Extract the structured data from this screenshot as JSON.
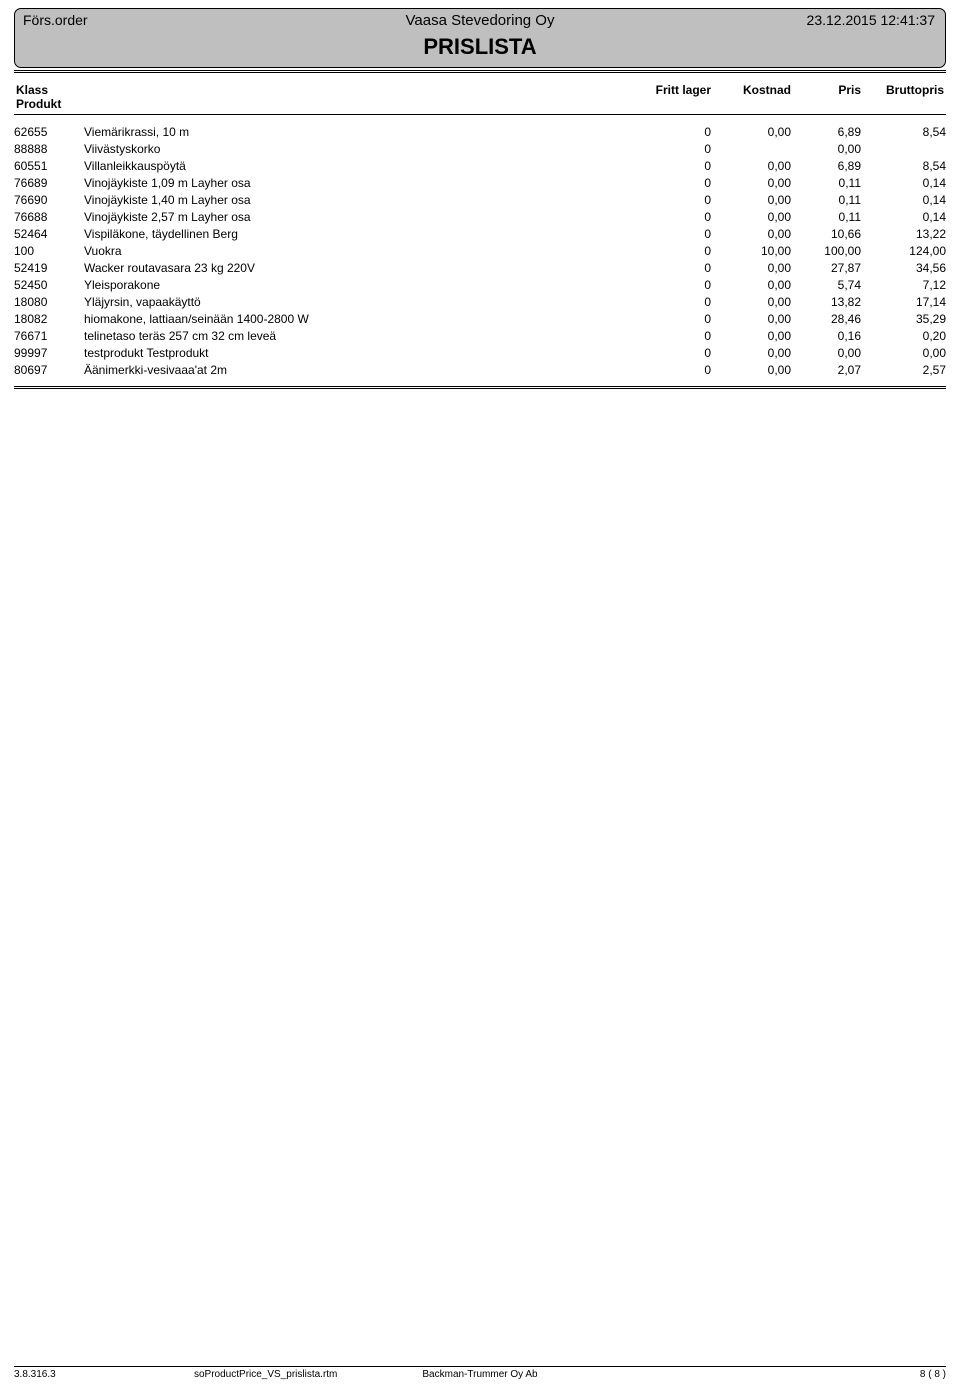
{
  "header": {
    "left": "Förs.order",
    "center": "Vaasa Stevedoring Oy",
    "right": "23.12.2015 12:41:37",
    "title": "PRISLISTA"
  },
  "columns": {
    "klass": "Klass",
    "produkt": "Produkt",
    "fritt": "Fritt lager",
    "kostnad": "Kostnad",
    "pris": "Pris",
    "bruttopris": "Bruttopris"
  },
  "rows": [
    {
      "code": "62655",
      "desc": "Viemärikrassi, 10 m",
      "fritt": "0",
      "kostnad": "0,00",
      "pris": "6,89",
      "brutto": "8,54"
    },
    {
      "code": "88888",
      "desc": "Viivästyskorko",
      "fritt": "0",
      "kostnad": "",
      "pris": "0,00",
      "brutto": ""
    },
    {
      "code": "60551",
      "desc": "Villanleikkauspöytä",
      "fritt": "0",
      "kostnad": "0,00",
      "pris": "6,89",
      "brutto": "8,54"
    },
    {
      "code": "76689",
      "desc": "Vinojäykiste 1,09 m Layher osa",
      "fritt": "0",
      "kostnad": "0,00",
      "pris": "0,11",
      "brutto": "0,14"
    },
    {
      "code": "76690",
      "desc": "Vinojäykiste 1,40 m Layher osa",
      "fritt": "0",
      "kostnad": "0,00",
      "pris": "0,11",
      "brutto": "0,14"
    },
    {
      "code": "76688",
      "desc": "Vinojäykiste 2,57 m Layher osa",
      "fritt": "0",
      "kostnad": "0,00",
      "pris": "0,11",
      "brutto": "0,14"
    },
    {
      "code": "52464",
      "desc": "Vispiläkone, täydellinen Berg",
      "fritt": "0",
      "kostnad": "0,00",
      "pris": "10,66",
      "brutto": "13,22"
    },
    {
      "code": "100",
      "desc": "Vuokra",
      "fritt": "0",
      "kostnad": "10,00",
      "pris": "100,00",
      "brutto": "124,00"
    },
    {
      "code": "52419",
      "desc": "Wacker routavasara 23 kg 220V",
      "fritt": "0",
      "kostnad": "0,00",
      "pris": "27,87",
      "brutto": "34,56"
    },
    {
      "code": "52450",
      "desc": "Yleisporakone",
      "fritt": "0",
      "kostnad": "0,00",
      "pris": "5,74",
      "brutto": "7,12"
    },
    {
      "code": "18080",
      "desc": "Yläjyrsin, vapaakäyttö",
      "fritt": "0",
      "kostnad": "0,00",
      "pris": "13,82",
      "brutto": "17,14"
    },
    {
      "code": "18082",
      "desc": "hiomakone, lattiaan/seinään 1400-2800 W",
      "fritt": "0",
      "kostnad": "0,00",
      "pris": "28,46",
      "brutto": "35,29"
    },
    {
      "code": "76671",
      "desc": "telinetaso teräs 257 cm 32 cm leveä",
      "fritt": "0",
      "kostnad": "0,00",
      "pris": "0,16",
      "brutto": "0,20"
    },
    {
      "code": "99997",
      "desc": "testprodukt Testprodukt",
      "fritt": "0",
      "kostnad": "0,00",
      "pris": "0,00",
      "brutto": "0,00"
    },
    {
      "code": "80697",
      "desc": "Äänimerkki-vesivaaa'at 2m",
      "fritt": "0",
      "kostnad": "0,00",
      "pris": "2,07",
      "brutto": "2,57"
    }
  ],
  "footer": {
    "version": "3.8.316.3",
    "template": "soProductPrice_VS_prislista.rtm",
    "company": "Backman-Trummer Oy Ab",
    "page": "8  (  8  )"
  }
}
